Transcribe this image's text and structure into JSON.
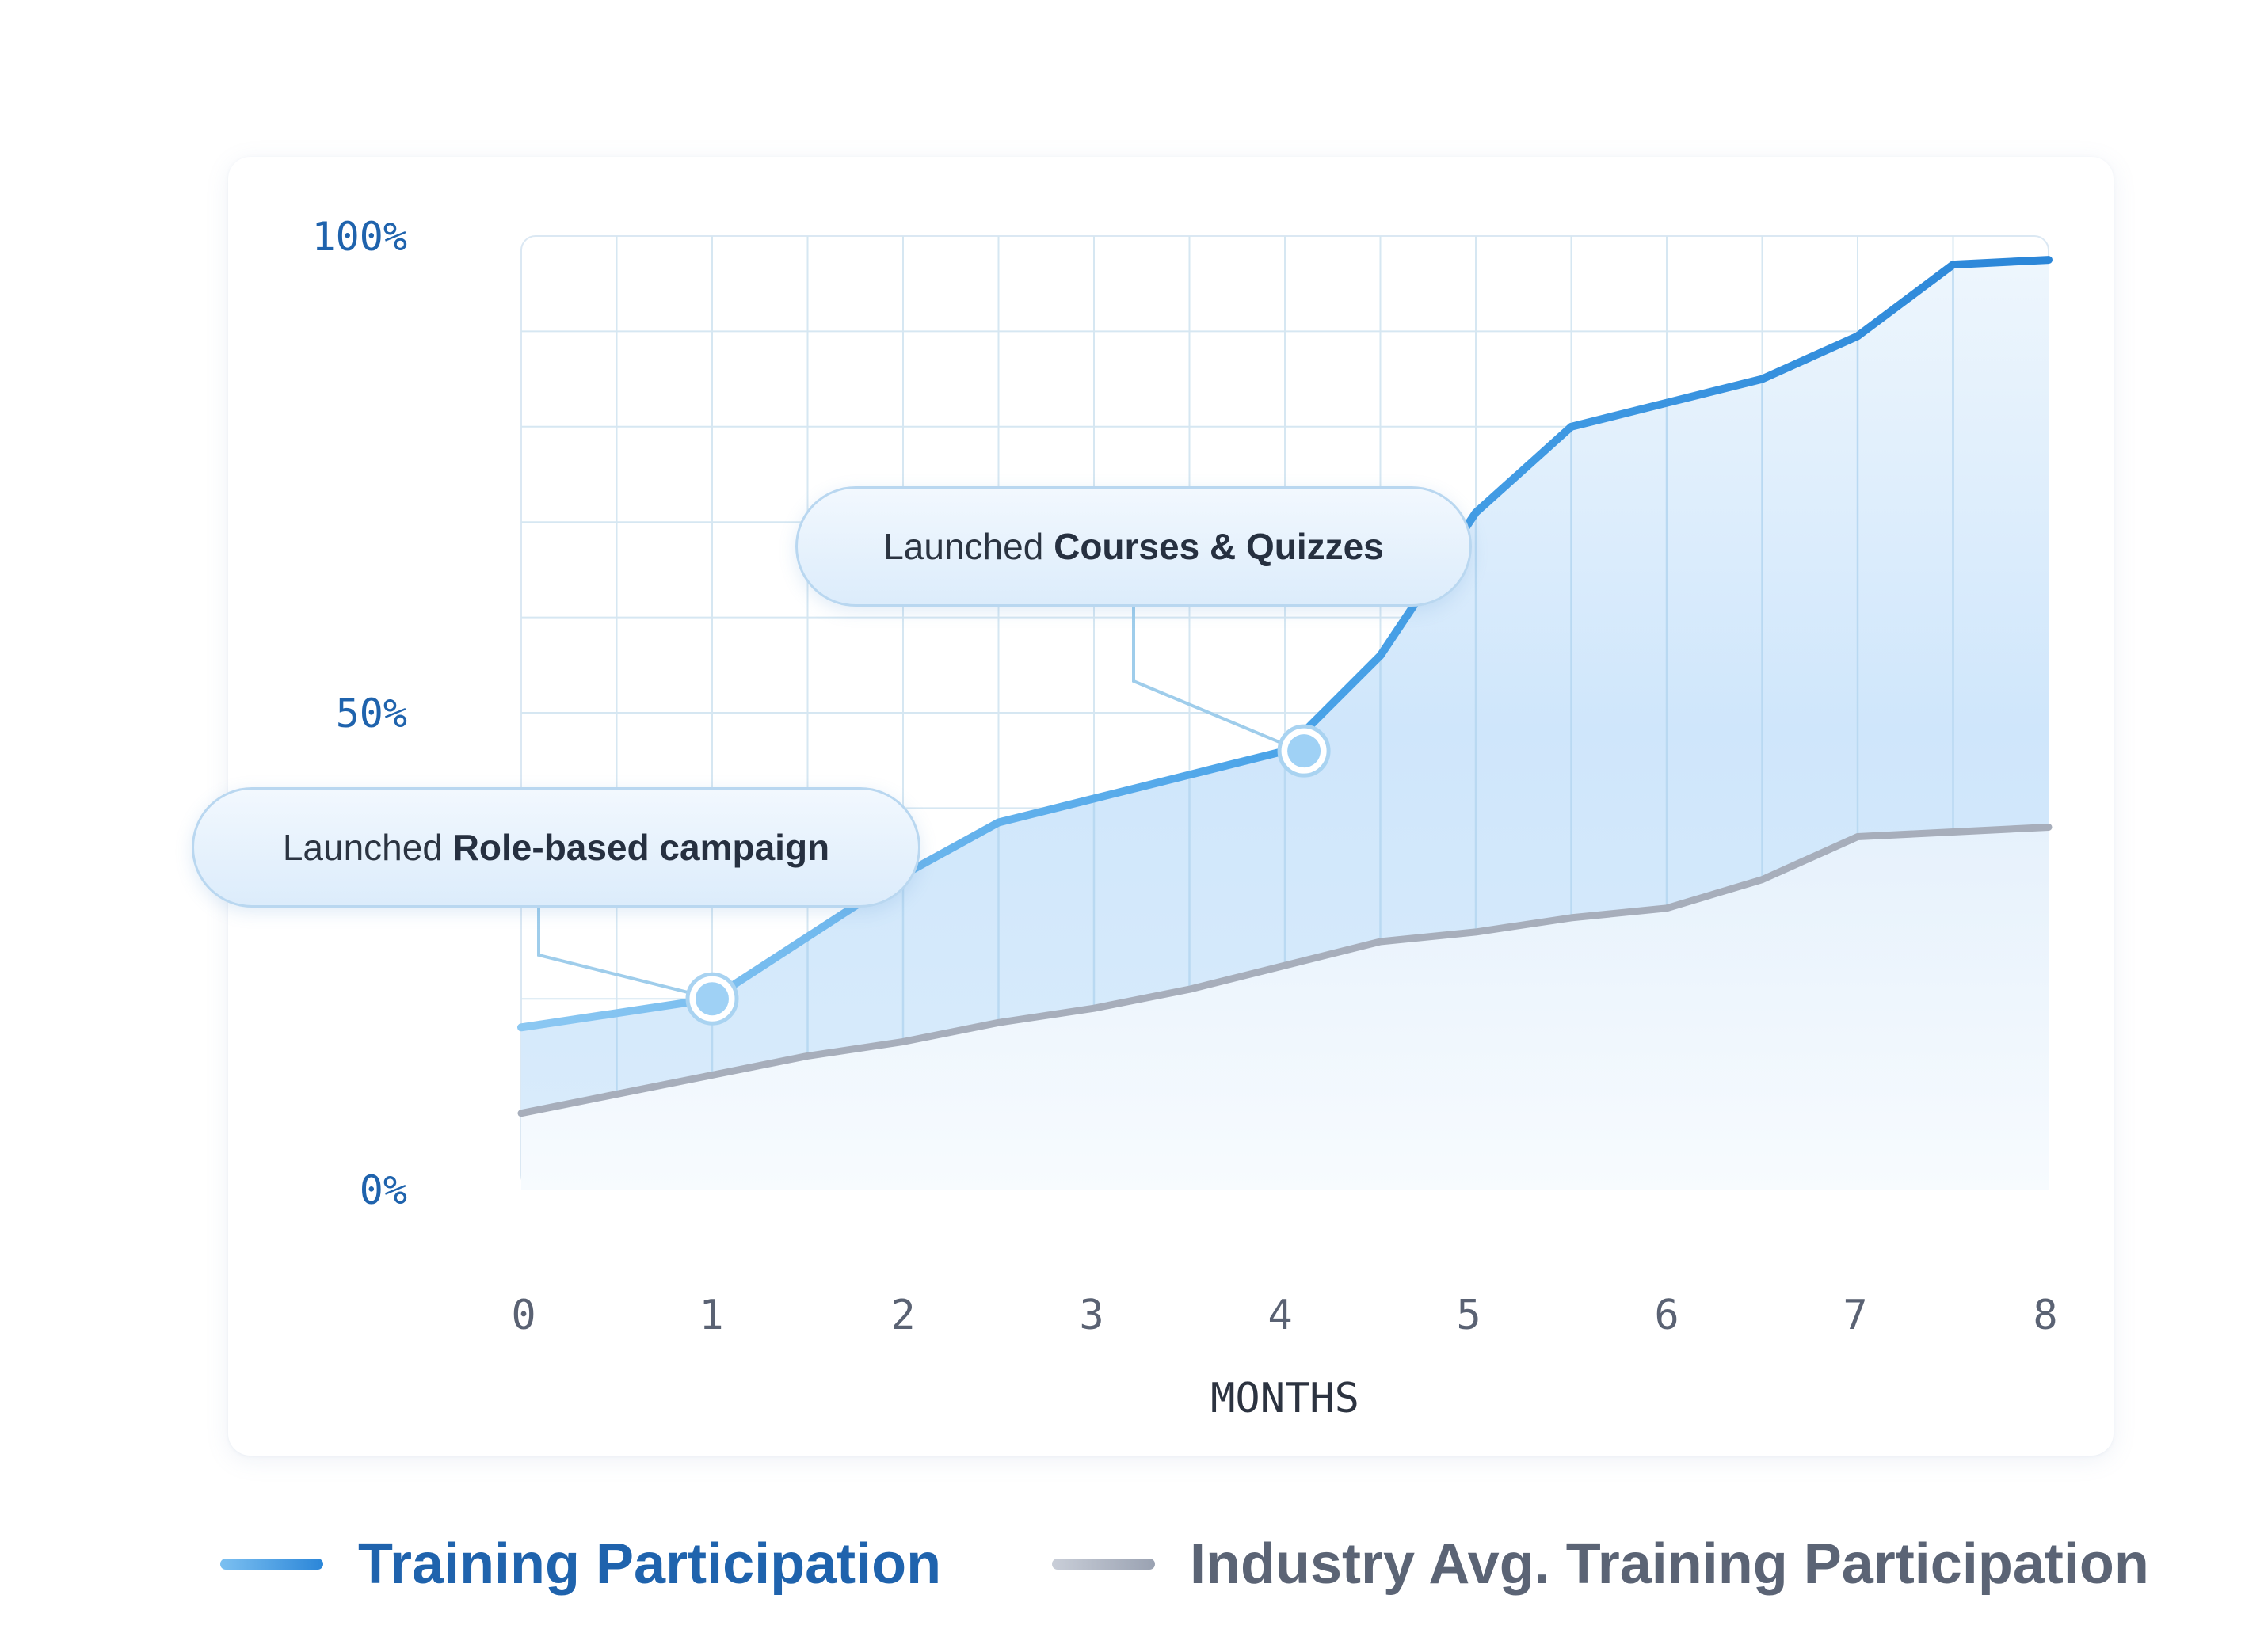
{
  "chart_data": {
    "type": "area",
    "x": [
      0,
      0.5,
      1,
      1.5,
      2,
      2.5,
      3,
      3.5,
      4,
      4.5,
      5,
      5.5,
      6,
      6.5,
      7,
      7.5,
      8
    ],
    "series": [
      {
        "name": "Training Participation",
        "color": "#3a95e3",
        "values": [
          17,
          18.5,
          20,
          26.5,
          33,
          38.5,
          41,
          43.5,
          46,
          56,
          71,
          80,
          82.5,
          85,
          89.5,
          97,
          97.5
        ]
      },
      {
        "name": "Industry Avg. Training Participation",
        "color": "#a3aab8",
        "values": [
          8,
          10,
          12,
          14,
          15.5,
          17.5,
          19,
          21,
          23.5,
          26,
          27,
          28.5,
          29.5,
          32.5,
          37,
          37.5,
          38
        ]
      }
    ],
    "x_ticks": [
      "0",
      "1",
      "2",
      "3",
      "4",
      "5",
      "6",
      "7",
      "8"
    ],
    "y_ticks": [
      "0%",
      "50%",
      "100%"
    ],
    "xlabel": "MONTHS",
    "ylabel": "",
    "xlim": [
      0,
      8
    ],
    "ylim": [
      0,
      100
    ],
    "grid": true,
    "legend_position": "bottom",
    "annotations": [
      {
        "prefix": "Launched ",
        "emphasis": "Role-based campaign",
        "x": 1,
        "y": 20
      },
      {
        "prefix": "Launched ",
        "emphasis": "Courses & Quizzes",
        "x": 4.1,
        "y": 46
      }
    ]
  }
}
